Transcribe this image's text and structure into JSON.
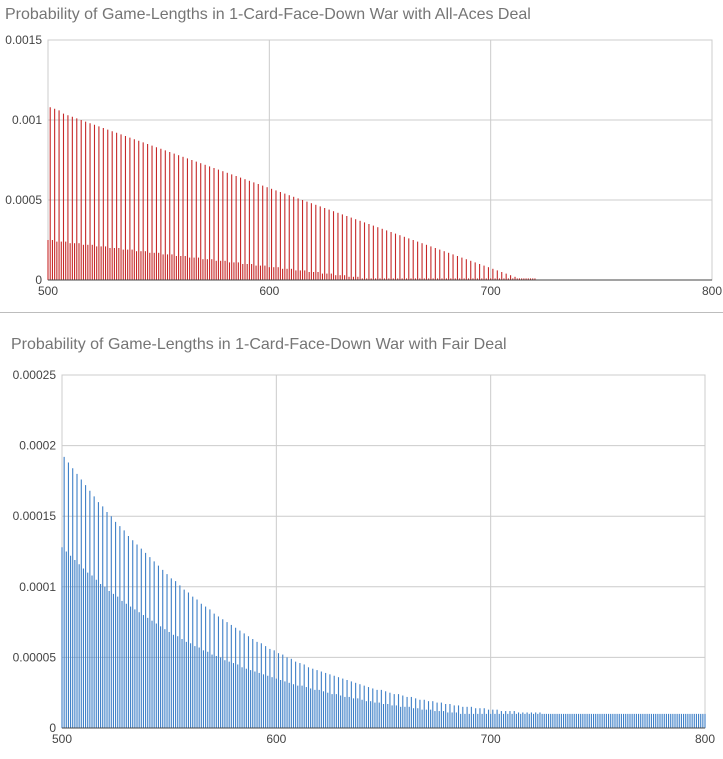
{
  "chart_data": [
    {
      "type": "bar",
      "title": "Probability of Game-Lengths in 1-Card-Face-Down War with All-Aces Deal",
      "xlabel": "",
      "ylabel": "",
      "xlim": [
        500,
        800
      ],
      "ylim": [
        0,
        0.0015
      ],
      "x_ticks": [
        "500",
        "600",
        "700",
        "800"
      ],
      "y_ticks": [
        "0",
        "0.0005",
        "0.001",
        "0.0015"
      ],
      "grid": true,
      "legend": "none",
      "color": "#c62828",
      "x_step": 2,
      "series": [
        {
          "x_start": 501,
          "values": [
            0.00108,
            0.00107,
            0.00106,
            0.00104,
            0.00103,
            0.00102,
            0.00101,
            0.001,
            0.00099,
            0.00098,
            0.00097,
            0.00096,
            0.00095,
            0.00094,
            0.00093,
            0.00092,
            0.00091,
            0.0009,
            0.00089,
            0.00088,
            0.00087,
            0.00086,
            0.00085,
            0.00084,
            0.00083,
            0.00082,
            0.00081,
            0.0008,
            0.00079,
            0.00078,
            0.00077,
            0.00076,
            0.00075,
            0.00074,
            0.00073,
            0.00072,
            0.00071,
            0.0007,
            0.00069,
            0.00068,
            0.00067,
            0.00066,
            0.00065,
            0.00064,
            0.00063,
            0.00062,
            0.00061,
            0.0006,
            0.00059,
            0.00058,
            0.00057,
            0.00056,
            0.00055,
            0.00054,
            0.00053,
            0.00052,
            0.00051,
            0.0005,
            0.00049,
            0.00048,
            0.00047,
            0.00046,
            0.00045,
            0.00044,
            0.00043,
            0.00042,
            0.00041,
            0.0004,
            0.00039,
            0.00038,
            0.00037,
            0.00036,
            0.00035,
            0.00034,
            0.00033,
            0.00032,
            0.00031,
            0.0003,
            0.00029,
            0.00028,
            0.00027,
            0.00026,
            0.00025,
            0.00024,
            0.00023,
            0.00022,
            0.00021,
            0.0002,
            0.00019,
            0.00018,
            0.00017,
            0.00016,
            0.00015,
            0.00014,
            0.00013,
            0.00012,
            0.00011,
            0.0001,
            9e-05,
            8e-05,
            7e-05,
            6e-05,
            5e-05,
            4e-05,
            3e-05,
            2e-05,
            1e-05,
            1e-05,
            1e-05,
            1e-05
          ]
        },
        {
          "x_start": 500,
          "values": [
            0.00025,
            0.00025,
            0.00024,
            0.00024,
            0.00024,
            0.00023,
            0.00023,
            0.00023,
            0.00022,
            0.00022,
            0.00022,
            0.00021,
            0.00021,
            0.00021,
            0.0002,
            0.0002,
            0.0002,
            0.00019,
            0.00019,
            0.00019,
            0.00018,
            0.00018,
            0.00018,
            0.00017,
            0.00017,
            0.00017,
            0.00016,
            0.00016,
            0.00016,
            0.00015,
            0.00015,
            0.00015,
            0.00014,
            0.00014,
            0.00014,
            0.00013,
            0.00013,
            0.00013,
            0.00012,
            0.00012,
            0.00012,
            0.00011,
            0.00011,
            0.00011,
            0.0001,
            0.0001,
            0.0001,
            9e-05,
            9e-05,
            9e-05,
            8e-05,
            8e-05,
            8e-05,
            7e-05,
            7e-05,
            7e-05,
            6e-05,
            6e-05,
            6e-05,
            5e-05,
            5e-05,
            5e-05,
            4e-05,
            4e-05,
            4e-05,
            3e-05,
            3e-05,
            3e-05,
            2e-05,
            2e-05,
            2e-05,
            1e-05,
            1e-05,
            1e-05,
            1e-05,
            1e-05,
            1e-05,
            1e-05,
            1e-05,
            1e-05,
            1e-05,
            1e-05,
            1e-05,
            1e-05,
            1e-05,
            1e-05,
            1e-05,
            1e-05,
            1e-05,
            1e-05,
            1e-05,
            1e-05,
            1e-05,
            1e-05,
            1e-05,
            1e-05,
            1e-05,
            1e-05,
            1e-05,
            1e-05,
            1e-05,
            1e-05,
            1e-05,
            1e-05,
            1e-05,
            1e-05,
            1e-05,
            1e-05,
            1e-05,
            1e-05,
            1e-05
          ]
        }
      ]
    },
    {
      "type": "bar",
      "title": "Probability of Game-Lengths in 1-Card-Face-Down War with Fair Deal",
      "xlabel": "",
      "ylabel": "",
      "xlim": [
        500,
        800
      ],
      "ylim": [
        0,
        0.00025
      ],
      "x_ticks": [
        "500",
        "600",
        "700",
        "800"
      ],
      "y_ticks": [
        "0",
        "0.00005",
        "0.0001",
        "0.00015",
        "0.0002",
        "0.00025"
      ],
      "grid": true,
      "legend": "none",
      "color": "#3d7fc7",
      "x_step": 2,
      "series": [
        {
          "x_start": 501,
          "values": [
            0.000192,
            0.000188,
            0.000184,
            0.00018,
            0.000176,
            0.000172,
            0.000168,
            0.000164,
            0.00016,
            0.000157,
            0.000153,
            0.00015,
            0.000146,
            0.000143,
            0.00014,
            0.000136,
            0.000133,
            0.00013,
            0.000127,
            0.000124,
            0.000121,
            0.000118,
            0.000115,
            0.000112,
            0.000109,
            0.000106,
            0.000104,
            0.000101,
            9.8e-05,
            9.6e-05,
            9.3e-05,
            9.1e-05,
            8.8e-05,
            8.6e-05,
            8.4e-05,
            8.1e-05,
            7.9e-05,
            7.7e-05,
            7.5e-05,
            7.3e-05,
            7.1e-05,
            6.9e-05,
            6.7e-05,
            6.5e-05,
            6.3e-05,
            6.1e-05,
            6e-05,
            5.8e-05,
            5.6e-05,
            5.5e-05,
            5.3e-05,
            5.2e-05,
            5e-05,
            4.9e-05,
            4.7e-05,
            4.6e-05,
            4.5e-05,
            4.3e-05,
            4.2e-05,
            4.1e-05,
            4e-05,
            3.9e-05,
            3.8e-05,
            3.7e-05,
            3.6e-05,
            3.5e-05,
            3.4e-05,
            3.3e-05,
            3.2e-05,
            3.1e-05,
            3e-05,
            2.9e-05,
            2.8e-05,
            2.7e-05,
            2.7e-05,
            2.6e-05,
            2.5e-05,
            2.4e-05,
            2.4e-05,
            2.3e-05,
            2.2e-05,
            2.2e-05,
            2.1e-05,
            2e-05,
            2e-05,
            1.9e-05,
            1.9e-05,
            1.8e-05,
            1.8e-05,
            1.7e-05,
            1.7e-05,
            1.6e-05,
            1.6e-05,
            1.5e-05,
            1.5e-05,
            1.5e-05,
            1.4e-05,
            1.4e-05,
            1.4e-05,
            1.3e-05,
            1.3e-05,
            1.3e-05,
            1.2e-05,
            1.2e-05,
            1.2e-05,
            1.2e-05,
            1.1e-05,
            1.1e-05,
            1.1e-05,
            1.1e-05,
            1.1e-05,
            1.1e-05,
            1e-05,
            1e-05,
            1e-05,
            1e-05,
            1e-05,
            1e-05,
            1e-05,
            1e-05,
            1e-05,
            1e-05,
            1e-05,
            1e-05,
            1e-05,
            1e-05,
            1e-05,
            1e-05,
            1e-05,
            1e-05,
            1e-05,
            1e-05,
            1e-05,
            1e-05,
            1e-05,
            1e-05,
            1e-05,
            1e-05,
            1e-05,
            1e-05,
            1e-05,
            1e-05,
            1e-05,
            1e-05,
            1e-05,
            1e-05,
            1e-05,
            1e-05,
            1e-05,
            1e-05
          ]
        },
        {
          "x_start": 500,
          "values": [
            0.000128,
            0.000125,
            0.000122,
            0.000119,
            0.000116,
            0.000113,
            0.00011,
            0.000108,
            0.000105,
            0.000102,
            0.0001,
            9.7e-05,
            9.5e-05,
            9.3e-05,
            9e-05,
            8.8e-05,
            8.6e-05,
            8.4e-05,
            8.2e-05,
            8e-05,
            7.8e-05,
            7.6e-05,
            7.4e-05,
            7.2e-05,
            7e-05,
            6.8e-05,
            6.6e-05,
            6.5e-05,
            6.3e-05,
            6.1e-05,
            6e-05,
            5.8e-05,
            5.7e-05,
            5.5e-05,
            5.4e-05,
            5.2e-05,
            5.1e-05,
            5e-05,
            4.8e-05,
            4.7e-05,
            4.6e-05,
            4.5e-05,
            4.3e-05,
            4.2e-05,
            4.1e-05,
            4e-05,
            3.9e-05,
            3.8e-05,
            3.7e-05,
            3.6e-05,
            3.5e-05,
            3.4e-05,
            3.3e-05,
            3.2e-05,
            3.1e-05,
            3e-05,
            3e-05,
            2.9e-05,
            2.8e-05,
            2.7e-05,
            2.7e-05,
            2.6e-05,
            2.5e-05,
            2.4e-05,
            2.4e-05,
            2.3e-05,
            2.2e-05,
            2.2e-05,
            2.1e-05,
            2.1e-05,
            2e-05,
            1.9e-05,
            1.9e-05,
            1.8e-05,
            1.8e-05,
            1.7e-05,
            1.7e-05,
            1.6e-05,
            1.6e-05,
            1.5e-05,
            1.5e-05,
            1.5e-05,
            1.4e-05,
            1.4e-05,
            1.3e-05,
            1.3e-05,
            1.3e-05,
            1.2e-05,
            1.2e-05,
            1.2e-05,
            1.1e-05,
            1.1e-05,
            1.1e-05,
            1e-05,
            1e-05,
            1e-05,
            1e-05,
            1e-05,
            1e-05,
            1e-05,
            1e-05,
            1e-05,
            1e-05,
            1e-05,
            1e-05,
            1e-05,
            1e-05,
            1e-05,
            1e-05,
            1e-05,
            1e-05,
            1e-05,
            1e-05,
            1e-05,
            1e-05,
            1e-05,
            1e-05,
            1e-05,
            1e-05,
            1e-05,
            1e-05,
            1e-05,
            1e-05,
            1e-05,
            1e-05,
            1e-05,
            1e-05,
            1e-05,
            1e-05,
            1e-05,
            1e-05,
            1e-05,
            1e-05,
            1e-05,
            1e-05,
            1e-05,
            1e-05,
            1e-05,
            1e-05,
            1e-05,
            1e-05,
            1e-05,
            1e-05,
            1e-05,
            1e-05,
            1e-05,
            1e-05,
            1e-05,
            1e-05,
            1e-05,
            1e-05,
            1e-05,
            1e-05,
            1e-05,
            1e-05
          ]
        }
      ]
    }
  ]
}
